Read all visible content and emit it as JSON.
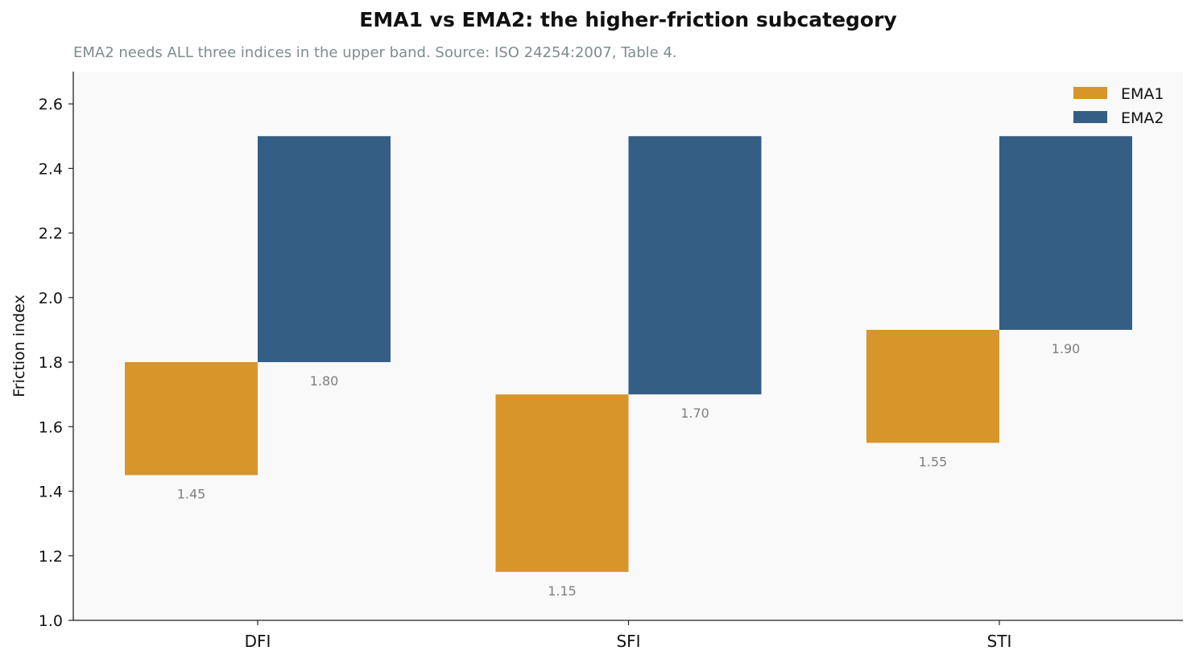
{
  "title": "EMA1 vs EMA2: the higher-friction subcategory",
  "subtitle": "EMA2 needs ALL three indices in the upper band. Source: ISO 24254:2007, Table 4.",
  "chart_data": {
    "type": "bar",
    "title": "EMA1 vs EMA2: the higher-friction subcategory",
    "subtitle": "EMA2 needs ALL three indices in the upper band. Source: ISO 24254:2007, Table 4.",
    "xlabel": "",
    "ylabel": "Friction index",
    "ylim": [
      1.0,
      2.7
    ],
    "yticks": [
      1.0,
      1.2,
      1.4,
      1.6,
      1.8,
      2.0,
      2.2,
      2.4,
      2.6
    ],
    "categories": [
      "DFI",
      "SFI",
      "STI"
    ],
    "series": [
      {
        "name": "EMA1",
        "color": "#d8952a",
        "low": [
          1.45,
          1.15,
          1.55
        ],
        "high": [
          1.8,
          1.7,
          1.9
        ],
        "labels": [
          "1.45",
          "1.15",
          "1.55"
        ]
      },
      {
        "name": "EMA2",
        "color": "#355e84",
        "low": [
          1.8,
          1.7,
          1.9
        ],
        "high": [
          2.5,
          2.5,
          2.5
        ],
        "labels": [
          "1.80",
          "1.70",
          "1.90"
        ]
      }
    ],
    "grid": false,
    "legend": "top-right",
    "plot_background": "#f9f9f9"
  }
}
